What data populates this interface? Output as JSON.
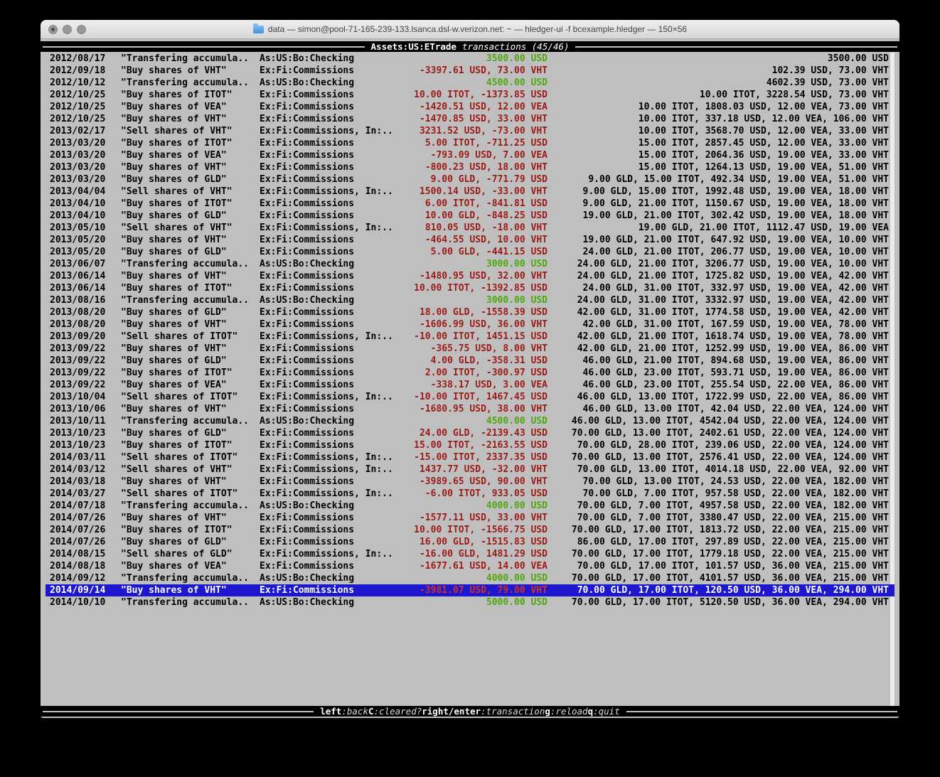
{
  "window": {
    "title": "data — simon@pool-71-165-239-133.lsanca.dsl-w.verizon.net: ~ — hledger-ui -f bcexample.hledger — 150×56"
  },
  "screen": {
    "account": "Assets:US:ETrade",
    "mode": "transactions (45/46)"
  },
  "footer": {
    "hints": [
      {
        "key": "left",
        "desc": ":back"
      },
      {
        "key": "C",
        "desc": ":cleared?"
      },
      {
        "key": "right/enter",
        "desc": ":transaction"
      },
      {
        "key": "g",
        "desc": ":reload"
      },
      {
        "key": "q",
        "desc": ":quit"
      }
    ]
  },
  "colors": {
    "terminal_bg": "#bfbfbf",
    "positive_amount": "#4ea80d",
    "negative_amount": "#9c1a16",
    "selection_bg": "#1d18cf",
    "selection_fg": "#ffffff",
    "selection_negative_amount": "#d23126"
  },
  "table": {
    "rows": [
      {
        "date": "2012/08/17",
        "description": "\"Transfering accumula..",
        "accounts": "As:US:Bo:Checking",
        "change": "3500.00 USD",
        "change_type": "positive",
        "balance": "3500.00 USD"
      },
      {
        "date": "2012/09/18",
        "description": "\"Buy shares of VHT\"",
        "accounts": "Ex:Fi:Commissions",
        "change": "-3397.61 USD, 73.00 VHT",
        "change_type": "negative",
        "balance": "102.39 USD, 73.00 VHT"
      },
      {
        "date": "2012/10/12",
        "description": "\"Transfering accumula..",
        "accounts": "As:US:Bo:Checking",
        "change": "4500.00 USD",
        "change_type": "positive",
        "balance": "4602.39 USD, 73.00 VHT"
      },
      {
        "date": "2012/10/25",
        "description": "\"Buy shares of ITOT\"",
        "accounts": "Ex:Fi:Commissions",
        "change": "10.00 ITOT, -1373.85 USD",
        "change_type": "negative",
        "balance": "10.00 ITOT, 3228.54 USD, 73.00 VHT"
      },
      {
        "date": "2012/10/25",
        "description": "\"Buy shares of VEA\"",
        "accounts": "Ex:Fi:Commissions",
        "change": "-1420.51 USD, 12.00 VEA",
        "change_type": "negative",
        "balance": "10.00 ITOT, 1808.03 USD, 12.00 VEA, 73.00 VHT"
      },
      {
        "date": "2012/10/25",
        "description": "\"Buy shares of VHT\"",
        "accounts": "Ex:Fi:Commissions",
        "change": "-1470.85 USD, 33.00 VHT",
        "change_type": "negative",
        "balance": "10.00 ITOT, 337.18 USD, 12.00 VEA, 106.00 VHT"
      },
      {
        "date": "2013/02/17",
        "description": "\"Sell shares of VHT\"",
        "accounts": "Ex:Fi:Commissions, In:..",
        "change": "3231.52 USD, -73.00 VHT",
        "change_type": "negative",
        "balance": "10.00 ITOT, 3568.70 USD, 12.00 VEA, 33.00 VHT"
      },
      {
        "date": "2013/03/20",
        "description": "\"Buy shares of ITOT\"",
        "accounts": "Ex:Fi:Commissions",
        "change": "5.00 ITOT, -711.25 USD",
        "change_type": "negative",
        "balance": "15.00 ITOT, 2857.45 USD, 12.00 VEA, 33.00 VHT"
      },
      {
        "date": "2013/03/20",
        "description": "\"Buy shares of VEA\"",
        "accounts": "Ex:Fi:Commissions",
        "change": "-793.09 USD, 7.00 VEA",
        "change_type": "negative",
        "balance": "15.00 ITOT, 2064.36 USD, 19.00 VEA, 33.00 VHT"
      },
      {
        "date": "2013/03/20",
        "description": "\"Buy shares of VHT\"",
        "accounts": "Ex:Fi:Commissions",
        "change": "-800.23 USD, 18.00 VHT",
        "change_type": "negative",
        "balance": "15.00 ITOT, 1264.13 USD, 19.00 VEA, 51.00 VHT"
      },
      {
        "date": "2013/03/20",
        "description": "\"Buy shares of GLD\"",
        "accounts": "Ex:Fi:Commissions",
        "change": "9.00 GLD, -771.79 USD",
        "change_type": "negative",
        "balance": "9.00 GLD, 15.00 ITOT, 492.34 USD, 19.00 VEA, 51.00 VHT"
      },
      {
        "date": "2013/04/04",
        "description": "\"Sell shares of VHT\"",
        "accounts": "Ex:Fi:Commissions, In:..",
        "change": "1500.14 USD, -33.00 VHT",
        "change_type": "negative",
        "balance": "9.00 GLD, 15.00 ITOT, 1992.48 USD, 19.00 VEA, 18.00 VHT"
      },
      {
        "date": "2013/04/10",
        "description": "\"Buy shares of ITOT\"",
        "accounts": "Ex:Fi:Commissions",
        "change": "6.00 ITOT, -841.81 USD",
        "change_type": "negative",
        "balance": "9.00 GLD, 21.00 ITOT, 1150.67 USD, 19.00 VEA, 18.00 VHT"
      },
      {
        "date": "2013/04/10",
        "description": "\"Buy shares of GLD\"",
        "accounts": "Ex:Fi:Commissions",
        "change": "10.00 GLD, -848.25 USD",
        "change_type": "negative",
        "balance": "19.00 GLD, 21.00 ITOT, 302.42 USD, 19.00 VEA, 18.00 VHT"
      },
      {
        "date": "2013/05/10",
        "description": "\"Sell shares of VHT\"",
        "accounts": "Ex:Fi:Commissions, In:..",
        "change": "810.05 USD, -18.00 VHT",
        "change_type": "negative",
        "balance": "19.00 GLD, 21.00 ITOT, 1112.47 USD, 19.00 VEA"
      },
      {
        "date": "2013/05/20",
        "description": "\"Buy shares of VHT\"",
        "accounts": "Ex:Fi:Commissions",
        "change": "-464.55 USD, 10.00 VHT",
        "change_type": "negative",
        "balance": "19.00 GLD, 21.00 ITOT, 647.92 USD, 19.00 VEA, 10.00 VHT"
      },
      {
        "date": "2013/05/20",
        "description": "\"Buy shares of GLD\"",
        "accounts": "Ex:Fi:Commissions",
        "change": "5.00 GLD, -441.15 USD",
        "change_type": "negative",
        "balance": "24.00 GLD, 21.00 ITOT, 206.77 USD, 19.00 VEA, 10.00 VHT"
      },
      {
        "date": "2013/06/07",
        "description": "\"Transfering accumula..",
        "accounts": "As:US:Bo:Checking",
        "change": "3000.00 USD",
        "change_type": "positive",
        "balance": "24.00 GLD, 21.00 ITOT, 3206.77 USD, 19.00 VEA, 10.00 VHT"
      },
      {
        "date": "2013/06/14",
        "description": "\"Buy shares of VHT\"",
        "accounts": "Ex:Fi:Commissions",
        "change": "-1480.95 USD, 32.00 VHT",
        "change_type": "negative",
        "balance": "24.00 GLD, 21.00 ITOT, 1725.82 USD, 19.00 VEA, 42.00 VHT"
      },
      {
        "date": "2013/06/14",
        "description": "\"Buy shares of ITOT\"",
        "accounts": "Ex:Fi:Commissions",
        "change": "10.00 ITOT, -1392.85 USD",
        "change_type": "negative",
        "balance": "24.00 GLD, 31.00 ITOT, 332.97 USD, 19.00 VEA, 42.00 VHT"
      },
      {
        "date": "2013/08/16",
        "description": "\"Transfering accumula..",
        "accounts": "As:US:Bo:Checking",
        "change": "3000.00 USD",
        "change_type": "positive",
        "balance": "24.00 GLD, 31.00 ITOT, 3332.97 USD, 19.00 VEA, 42.00 VHT"
      },
      {
        "date": "2013/08/20",
        "description": "\"Buy shares of GLD\"",
        "accounts": "Ex:Fi:Commissions",
        "change": "18.00 GLD, -1558.39 USD",
        "change_type": "negative",
        "balance": "42.00 GLD, 31.00 ITOT, 1774.58 USD, 19.00 VEA, 42.00 VHT"
      },
      {
        "date": "2013/08/20",
        "description": "\"Buy shares of VHT\"",
        "accounts": "Ex:Fi:Commissions",
        "change": "-1606.99 USD, 36.00 VHT",
        "change_type": "negative",
        "balance": "42.00 GLD, 31.00 ITOT, 167.59 USD, 19.00 VEA, 78.00 VHT"
      },
      {
        "date": "2013/09/20",
        "description": "\"Sell shares of ITOT\"",
        "accounts": "Ex:Fi:Commissions, In:..",
        "change": "-10.00 ITOT, 1451.15 USD",
        "change_type": "negative",
        "balance": "42.00 GLD, 21.00 ITOT, 1618.74 USD, 19.00 VEA, 78.00 VHT"
      },
      {
        "date": "2013/09/22",
        "description": "\"Buy shares of VHT\"",
        "accounts": "Ex:Fi:Commissions",
        "change": "-365.75 USD, 8.00 VHT",
        "change_type": "negative",
        "balance": "42.00 GLD, 21.00 ITOT, 1252.99 USD, 19.00 VEA, 86.00 VHT"
      },
      {
        "date": "2013/09/22",
        "description": "\"Buy shares of GLD\"",
        "accounts": "Ex:Fi:Commissions",
        "change": "4.00 GLD, -358.31 USD",
        "change_type": "negative",
        "balance": "46.00 GLD, 21.00 ITOT, 894.68 USD, 19.00 VEA, 86.00 VHT"
      },
      {
        "date": "2013/09/22",
        "description": "\"Buy shares of ITOT\"",
        "accounts": "Ex:Fi:Commissions",
        "change": "2.00 ITOT, -300.97 USD",
        "change_type": "negative",
        "balance": "46.00 GLD, 23.00 ITOT, 593.71 USD, 19.00 VEA, 86.00 VHT"
      },
      {
        "date": "2013/09/22",
        "description": "\"Buy shares of VEA\"",
        "accounts": "Ex:Fi:Commissions",
        "change": "-338.17 USD, 3.00 VEA",
        "change_type": "negative",
        "balance": "46.00 GLD, 23.00 ITOT, 255.54 USD, 22.00 VEA, 86.00 VHT"
      },
      {
        "date": "2013/10/04",
        "description": "\"Sell shares of ITOT\"",
        "accounts": "Ex:Fi:Commissions, In:..",
        "change": "-10.00 ITOT, 1467.45 USD",
        "change_type": "negative",
        "balance": "46.00 GLD, 13.00 ITOT, 1722.99 USD, 22.00 VEA, 86.00 VHT"
      },
      {
        "date": "2013/10/06",
        "description": "\"Buy shares of VHT\"",
        "accounts": "Ex:Fi:Commissions",
        "change": "-1680.95 USD, 38.00 VHT",
        "change_type": "negative",
        "balance": "46.00 GLD, 13.00 ITOT, 42.04 USD, 22.00 VEA, 124.00 VHT"
      },
      {
        "date": "2013/10/11",
        "description": "\"Transfering accumula..",
        "accounts": "As:US:Bo:Checking",
        "change": "4500.00 USD",
        "change_type": "positive",
        "balance": "46.00 GLD, 13.00 ITOT, 4542.04 USD, 22.00 VEA, 124.00 VHT"
      },
      {
        "date": "2013/10/23",
        "description": "\"Buy shares of GLD\"",
        "accounts": "Ex:Fi:Commissions",
        "change": "24.00 GLD, -2139.43 USD",
        "change_type": "negative",
        "balance": "70.00 GLD, 13.00 ITOT, 2402.61 USD, 22.00 VEA, 124.00 VHT"
      },
      {
        "date": "2013/10/23",
        "description": "\"Buy shares of ITOT\"",
        "accounts": "Ex:Fi:Commissions",
        "change": "15.00 ITOT, -2163.55 USD",
        "change_type": "negative",
        "balance": "70.00 GLD, 28.00 ITOT, 239.06 USD, 22.00 VEA, 124.00 VHT"
      },
      {
        "date": "2014/03/11",
        "description": "\"Sell shares of ITOT\"",
        "accounts": "Ex:Fi:Commissions, In:..",
        "change": "-15.00 ITOT, 2337.35 USD",
        "change_type": "negative",
        "balance": "70.00 GLD, 13.00 ITOT, 2576.41 USD, 22.00 VEA, 124.00 VHT"
      },
      {
        "date": "2014/03/12",
        "description": "\"Sell shares of VHT\"",
        "accounts": "Ex:Fi:Commissions, In:..",
        "change": "1437.77 USD, -32.00 VHT",
        "change_type": "negative",
        "balance": "70.00 GLD, 13.00 ITOT, 4014.18 USD, 22.00 VEA, 92.00 VHT"
      },
      {
        "date": "2014/03/18",
        "description": "\"Buy shares of VHT\"",
        "accounts": "Ex:Fi:Commissions",
        "change": "-3989.65 USD, 90.00 VHT",
        "change_type": "negative",
        "balance": "70.00 GLD, 13.00 ITOT, 24.53 USD, 22.00 VEA, 182.00 VHT"
      },
      {
        "date": "2014/03/27",
        "description": "\"Sell shares of ITOT\"",
        "accounts": "Ex:Fi:Commissions, In:..",
        "change": "-6.00 ITOT, 933.05 USD",
        "change_type": "negative",
        "balance": "70.00 GLD, 7.00 ITOT, 957.58 USD, 22.00 VEA, 182.00 VHT"
      },
      {
        "date": "2014/07/18",
        "description": "\"Transfering accumula..",
        "accounts": "As:US:Bo:Checking",
        "change": "4000.00 USD",
        "change_type": "positive",
        "balance": "70.00 GLD, 7.00 ITOT, 4957.58 USD, 22.00 VEA, 182.00 VHT"
      },
      {
        "date": "2014/07/26",
        "description": "\"Buy shares of VHT\"",
        "accounts": "Ex:Fi:Commissions",
        "change": "-1577.11 USD, 33.00 VHT",
        "change_type": "negative",
        "balance": "70.00 GLD, 7.00 ITOT, 3380.47 USD, 22.00 VEA, 215.00 VHT"
      },
      {
        "date": "2014/07/26",
        "description": "\"Buy shares of ITOT\"",
        "accounts": "Ex:Fi:Commissions",
        "change": "10.00 ITOT, -1566.75 USD",
        "change_type": "negative",
        "balance": "70.00 GLD, 17.00 ITOT, 1813.72 USD, 22.00 VEA, 215.00 VHT"
      },
      {
        "date": "2014/07/26",
        "description": "\"Buy shares of GLD\"",
        "accounts": "Ex:Fi:Commissions",
        "change": "16.00 GLD, -1515.83 USD",
        "change_type": "negative",
        "balance": "86.00 GLD, 17.00 ITOT, 297.89 USD, 22.00 VEA, 215.00 VHT"
      },
      {
        "date": "2014/08/15",
        "description": "\"Sell shares of GLD\"",
        "accounts": "Ex:Fi:Commissions, In:..",
        "change": "-16.00 GLD, 1481.29 USD",
        "change_type": "negative",
        "balance": "70.00 GLD, 17.00 ITOT, 1779.18 USD, 22.00 VEA, 215.00 VHT"
      },
      {
        "date": "2014/08/18",
        "description": "\"Buy shares of VEA\"",
        "accounts": "Ex:Fi:Commissions",
        "change": "-1677.61 USD, 14.00 VEA",
        "change_type": "negative",
        "balance": "70.00 GLD, 17.00 ITOT, 101.57 USD, 36.00 VEA, 215.00 VHT"
      },
      {
        "date": "2014/09/12",
        "description": "\"Transfering accumula..",
        "accounts": "As:US:Bo:Checking",
        "change": "4000.00 USD",
        "change_type": "positive",
        "balance": "70.00 GLD, 17.00 ITOT, 4101.57 USD, 36.00 VEA, 215.00 VHT"
      },
      {
        "date": "2014/09/14",
        "description": "\"Buy shares of VHT\"",
        "accounts": "Ex:Fi:Commissions",
        "change": "-3981.07 USD, 79.00 VHT",
        "change_type": "negative",
        "balance": "70.00 GLD, 17.00 ITOT, 120.50 USD, 36.00 VEA, 294.00 VHT",
        "selected": true
      },
      {
        "date": "2014/10/10",
        "description": "\"Transfering accumula..",
        "accounts": "As:US:Bo:Checking",
        "change": "5000.00 USD",
        "change_type": "positive",
        "balance": "70.00 GLD, 17.00 ITOT, 5120.50 USD, 36.00 VEA, 294.00 VHT"
      }
    ]
  }
}
